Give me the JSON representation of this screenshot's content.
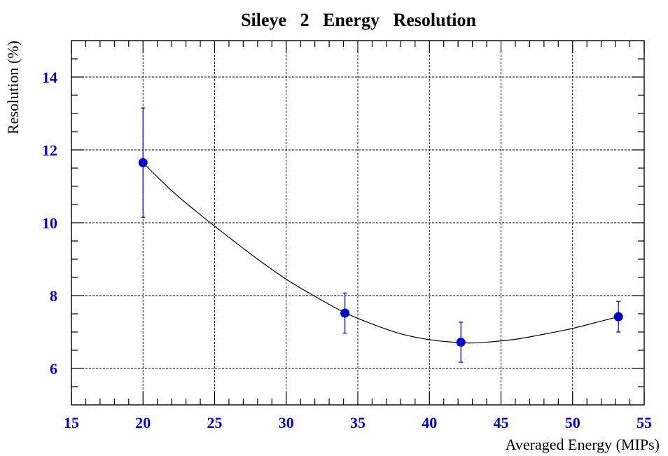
{
  "chart_data": {
    "type": "scatter",
    "title": "Sileye   2   Energy   Resolution",
    "xlabel": "Averaged Energy (MIPs)",
    "ylabel": "Resolution (%)",
    "xlim": [
      15,
      55
    ],
    "ylim": [
      5,
      15
    ],
    "x_ticks": [
      15,
      20,
      25,
      30,
      35,
      40,
      45,
      50,
      55
    ],
    "y_ticks": [
      6,
      8,
      10,
      12,
      14
    ],
    "grid": true,
    "series": [
      {
        "points": [
          {
            "x": 20.0,
            "y": 11.65,
            "err": 1.5
          },
          {
            "x": 34.1,
            "y": 7.52,
            "err": 0.55
          },
          {
            "x": 42.2,
            "y": 6.72,
            "err": 0.55
          },
          {
            "x": 53.2,
            "y": 7.42,
            "err": 0.42
          }
        ],
        "color": "#0000cc"
      }
    ],
    "fit_curve": {
      "x": [
        20,
        22,
        24,
        26,
        28,
        30,
        32,
        34,
        36,
        38,
        40,
        42,
        43,
        44,
        46,
        48,
        50,
        52,
        53.2
      ],
      "y": [
        11.65,
        10.88,
        10.22,
        9.6,
        9.0,
        8.45,
        7.98,
        7.55,
        7.22,
        6.95,
        6.79,
        6.71,
        6.7,
        6.72,
        6.8,
        6.94,
        7.1,
        7.3,
        7.42
      ],
      "color": "#000000"
    }
  }
}
